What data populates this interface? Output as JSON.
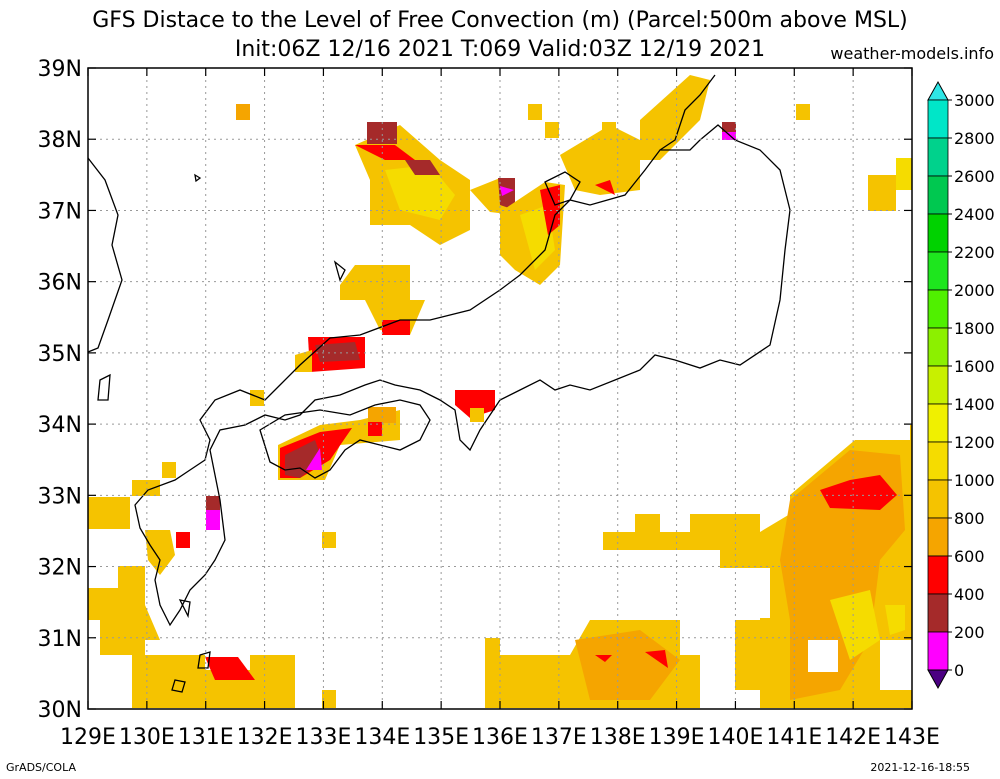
{
  "header": {
    "title_line1": "GFS Distace to the Level of Free Convection (m) (Parcel:500m above MSL)",
    "title_line2": "Init:06Z 12/16 2021 T:069 Valid:03Z 12/19 2021",
    "site": "weather-models.info"
  },
  "footer": {
    "left": "GrADS/COLA",
    "right": "2021-12-16-18:55"
  },
  "map": {
    "lon_labels": [
      "129E",
      "130E",
      "131E",
      "132E",
      "133E",
      "134E",
      "135E",
      "136E",
      "137E",
      "138E",
      "139E",
      "140E",
      "141E",
      "142E",
      "143E"
    ],
    "lat_labels": [
      "39N",
      "38N",
      "37N",
      "36N",
      "35N",
      "34N",
      "33N",
      "32N",
      "31N",
      "30N"
    ]
  },
  "colorbar": {
    "labels": [
      "3000",
      "2800",
      "2600",
      "2400",
      "2200",
      "2000",
      "1800",
      "1600",
      "1400",
      "1200",
      "1000",
      "800",
      "600",
      "400",
      "200",
      "0"
    ],
    "colors": [
      "#00e6c8",
      "#00d28c",
      "#00c850",
      "#00d200",
      "#1ee61e",
      "#50f000",
      "#8cf000",
      "#c8f000",
      "#f0f000",
      "#f5dc00",
      "#f5c300",
      "#f5a500",
      "#ff0000",
      "#a52a2a",
      "#ff00ff",
      "#4b0082"
    ],
    "over_color": "#2ee6e6",
    "under_color": "#4b0082"
  }
}
